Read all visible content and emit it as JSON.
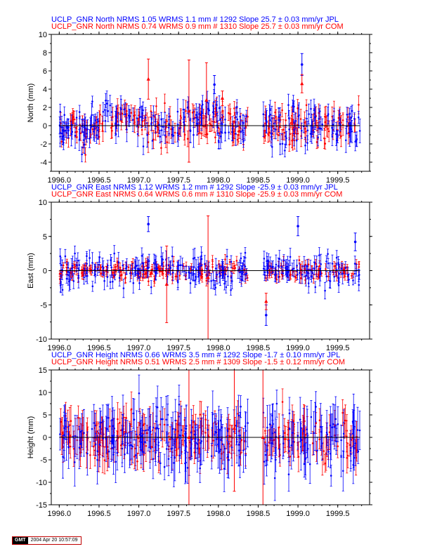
{
  "chart_data": [
    {
      "type": "scatter",
      "ylabel": "North (mm)",
      "ylim": [
        -5,
        10
      ],
      "yticks": [
        -4,
        -2,
        0,
        2,
        4,
        6,
        8,
        10
      ],
      "xlim": [
        1995.9,
        1999.9
      ],
      "xticks": [
        "1996.0",
        "1996.5",
        "1997.0",
        "1997.5",
        "1998.0",
        "1998.5",
        "1999.0",
        "1999.5"
      ],
      "data_gap": [
        1998.37,
        1998.56
      ],
      "header": [
        {
          "text": "UCLP_GNR North NRMS 1.05 WRMS  1.1 mm # 1292 Slope   25.7 ±  0.03 mm/yr JPL",
          "color": "#0000ff"
        },
        {
          "text": "UCLP_GNR North NRMS 0.74 WRMS  0.9 mm # 1310 Slope   25.7 ±  0.03 mm/yr COM",
          "color": "#ff0000"
        }
      ],
      "series": [
        {
          "name": "JPL",
          "color": "#0000ff",
          "marker": "circle",
          "points": 1292,
          "wrms": 1.1,
          "slope": 25.7,
          "slope_sigma": 0.03
        },
        {
          "name": "COM",
          "color": "#ff0000",
          "marker": "triangle",
          "points": 1310,
          "wrms": 0.9,
          "slope": 25.7,
          "slope_sigma": 0.03
        }
      ],
      "outliers": [
        {
          "x": 1997.12,
          "y": 5.1,
          "err": 2.2,
          "series": "COM"
        },
        {
          "x": 1997.63,
          "y": 1.6,
          "err": 5.6,
          "series": "COM"
        },
        {
          "x": 1997.85,
          "y": 2.8,
          "err": 4.1,
          "series": "COM"
        },
        {
          "x": 1997.95,
          "y": 4.5,
          "err": 1.0,
          "series": "JPL"
        },
        {
          "x": 1998.05,
          "y": 3.0,
          "err": 0.8,
          "series": "COM"
        },
        {
          "x": 1999.05,
          "y": 6.7,
          "err": 1.2,
          "series": "JPL"
        },
        {
          "x": 1999.05,
          "y": 4.6,
          "err": 1.0,
          "series": "COM"
        }
      ]
    },
    {
      "type": "scatter",
      "ylabel": "East (mm)",
      "ylim": [
        -10,
        10
      ],
      "yticks": [
        -10,
        -5,
        0,
        5,
        10
      ],
      "xlim": [
        1995.9,
        1999.9
      ],
      "xticks": [
        "1996.0",
        "1996.5",
        "1997.0",
        "1997.5",
        "1998.0",
        "1998.5",
        "1999.0",
        "1999.5"
      ],
      "data_gap": [
        1998.37,
        1998.56
      ],
      "header": [
        {
          "text": "UCLP_GNR East NRMS 1.12 WRMS  1.2 mm # 1292 Slope  -25.9 ±  0.03 mm/yr JPL",
          "color": "#0000ff"
        },
        {
          "text": "UCLP_GNR East NRMS 0.64 WRMS  0.6 mm # 1310 Slope  -25.9 ±  0.03 mm/yr COM",
          "color": "#ff0000"
        }
      ],
      "series": [
        {
          "name": "JPL",
          "color": "#0000ff",
          "marker": "circle",
          "points": 1292,
          "wrms": 1.2,
          "slope": -25.9,
          "slope_sigma": 0.03
        },
        {
          "name": "COM",
          "color": "#ff0000",
          "marker": "triangle",
          "points": 1310,
          "wrms": 0.6,
          "slope": -25.9,
          "slope_sigma": 0.03
        }
      ],
      "outliers": [
        {
          "x": 1997.12,
          "y": 6.8,
          "err": 1.1,
          "series": "JPL"
        },
        {
          "x": 1997.35,
          "y": -2.0,
          "err": 5.6,
          "series": "COM"
        },
        {
          "x": 1997.87,
          "y": -1.0,
          "err": 9.0,
          "series": "COM"
        },
        {
          "x": 1998.6,
          "y": -6.5,
          "err": 1.5,
          "series": "JPL"
        },
        {
          "x": 1998.6,
          "y": -4.5,
          "err": 1.2,
          "series": "COM"
        },
        {
          "x": 1999.0,
          "y": 6.5,
          "err": 1.4,
          "series": "JPL"
        },
        {
          "x": 1999.72,
          "y": 4.2,
          "err": 1.3,
          "series": "JPL"
        }
      ]
    },
    {
      "type": "scatter",
      "ylabel": "Height (mm)",
      "ylim": [
        -15,
        15
      ],
      "yticks": [
        -15,
        -10,
        -5,
        0,
        5,
        10,
        15
      ],
      "xlim": [
        1995.9,
        1999.9
      ],
      "xticks": [
        "1996.0",
        "1996.5",
        "1997.0",
        "1997.5",
        "1998.0",
        "1998.5",
        "1999.0",
        "1999.5"
      ],
      "data_gap": [
        1998.37,
        1998.56
      ],
      "header": [
        {
          "text": "UCLP_GNR Height NRMS 0.66 WRMS  3.5 mm # 1292 Slope   -1.7 ±  0.10 mm/yr JPL",
          "color": "#0000ff"
        },
        {
          "text": "UCLP_GNR Height NRMS 0.51 WRMS  2.5 mm # 1309 Slope   -1.5 ±  0.12 mm/yr COM",
          "color": "#ff0000"
        }
      ],
      "series": [
        {
          "name": "JPL",
          "color": "#0000ff",
          "marker": "circle",
          "points": 1292,
          "wrms": 3.5,
          "slope": -1.7,
          "slope_sigma": 0.1
        },
        {
          "name": "COM",
          "color": "#ff0000",
          "marker": "triangle",
          "points": 1309,
          "wrms": 2.5,
          "slope": -1.5,
          "slope_sigma": 0.12
        }
      ],
      "outliers": [
        {
          "x": 1997.63,
          "y": 0.0,
          "err": 16.0,
          "series": "COM"
        },
        {
          "x": 1998.2,
          "y": 2.0,
          "err": 14.0,
          "series": "COM"
        },
        {
          "x": 1998.56,
          "y": 0.0,
          "err": 16.0,
          "series": "COM"
        }
      ]
    }
  ],
  "footer": {
    "logo": "GMT",
    "timestamp": "2004 Apr 20 10:57:09"
  }
}
